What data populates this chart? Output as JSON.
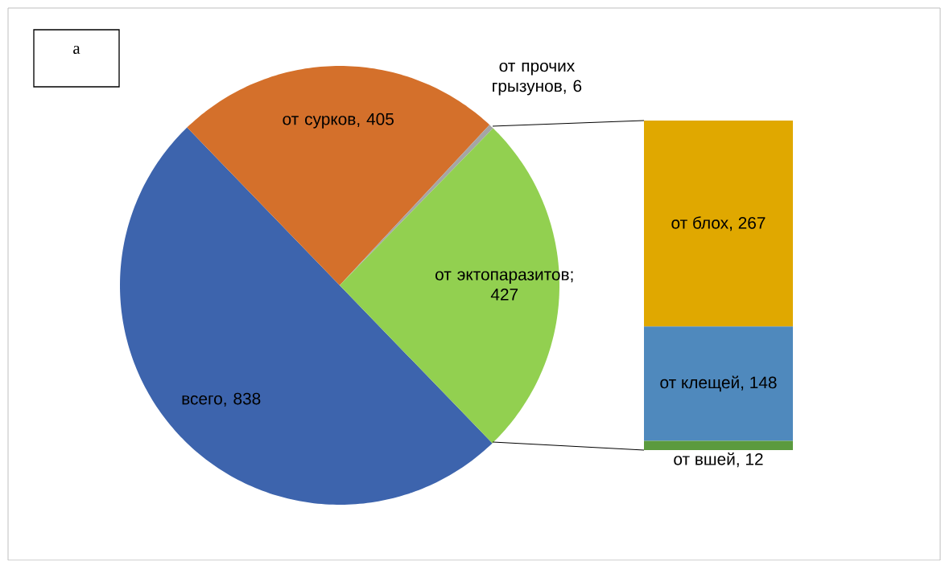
{
  "chart_data": [
    {
      "type": "pie",
      "categories": [
        null,
        null,
        null,
        null
      ],
      "values": [
        838,
        405,
        6,
        427
      ],
      "colors": [
        "#3d64ad",
        "#d4702b",
        "#a5a5a5",
        "#92d050"
      ],
      "value_labels": [
        "всего, 838",
        "от сурков, 405",
        "от прочих грызунов, 6",
        "от эктопаразитов; 427"
      ],
      "annotations": [
        "а"
      ]
    },
    {
      "type": "bar",
      "stacked": true,
      "categories": [
        null
      ],
      "series": [
        {
          "color": "#5b9a3e",
          "values": [
            12
          ],
          "value_labels": [
            "от вшей, 12"
          ]
        },
        {
          "color": "#4f89bd",
          "values": [
            148
          ],
          "value_labels": [
            "от клещей, 148"
          ]
        },
        {
          "color": "#e0a800",
          "values": [
            267
          ],
          "value_labels": [
            "от блох, 267"
          ]
        }
      ]
    }
  ]
}
